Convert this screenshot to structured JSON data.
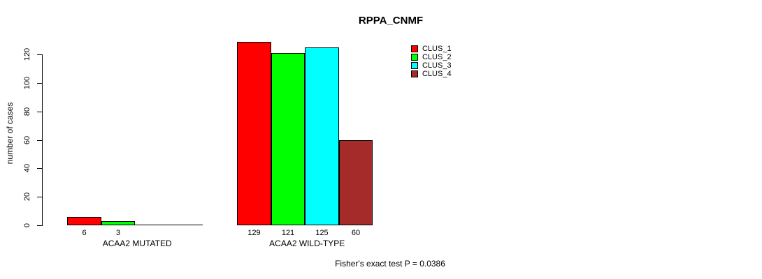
{
  "chart": {
    "title": "RPPA_CNMF",
    "ylabel": "number of cases",
    "footer": "Fisher's exact test P = 0.0386"
  },
  "chart_data": {
    "type": "bar",
    "title": "RPPA_CNMF",
    "xlabel": "",
    "ylabel": "number of cases",
    "ylim": [
      0,
      120
    ],
    "yticks": [
      0,
      20,
      40,
      60,
      80,
      100,
      120
    ],
    "categories": [
      "ACAA2 MUTATED",
      "ACAA2 WILD-TYPE"
    ],
    "series": [
      {
        "name": "CLUS_1",
        "color": "#ff0000",
        "values": [
          6,
          129
        ]
      },
      {
        "name": "CLUS_2",
        "color": "#00ff00",
        "values": [
          3,
          121
        ]
      },
      {
        "name": "CLUS_3",
        "color": "#00ffff",
        "values": [
          0,
          125
        ]
      },
      {
        "name": "CLUS_4",
        "color": "#a52a2a",
        "values": [
          0,
          60
        ]
      }
    ],
    "bar_value_labels_shown": true,
    "zero_bars_labeled": false,
    "legend_position": "right",
    "legend_entries": [
      "CLUS_1",
      "CLUS_2",
      "CLUS_3",
      "CLUS_4"
    ],
    "annotation": "Fisher's exact test P = 0.0386",
    "grid": false,
    "background": "#ffffff",
    "axis_color": "#000000"
  }
}
